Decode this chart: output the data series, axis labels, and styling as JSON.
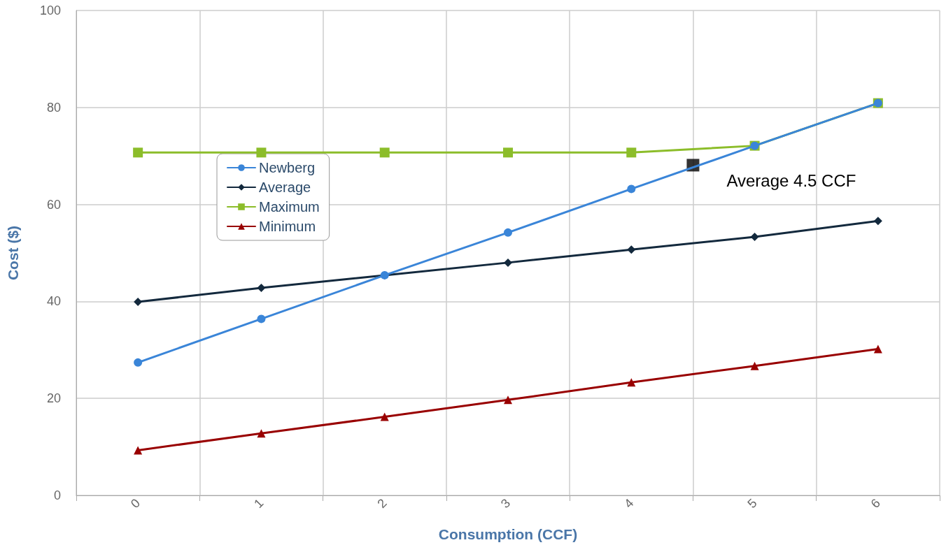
{
  "chart_data": {
    "type": "line",
    "xlabel": "Consumption (CCF)",
    "ylabel": "Cost ($)",
    "x": [
      0,
      1,
      2,
      3,
      4,
      5,
      6
    ],
    "series": [
      {
        "name": "Newberg",
        "color": "#3a85d8",
        "marker": "circle",
        "values": [
          27.4,
          36.4,
          45.4,
          54.2,
          63.2,
          72.1,
          80.9
        ]
      },
      {
        "name": "Average",
        "color": "#13293d",
        "marker": "diamond",
        "values": [
          39.9,
          42.8,
          45.4,
          48.0,
          50.7,
          53.3,
          56.6
        ]
      },
      {
        "name": "Maximum",
        "color": "#8cbd2a",
        "marker": "square",
        "values": [
          70.7,
          70.7,
          70.7,
          70.7,
          70.7,
          72.1,
          80.9
        ]
      },
      {
        "name": "Minimum",
        "color": "#990000",
        "marker": "triangle",
        "values": [
          9.3,
          12.8,
          16.2,
          19.7,
          23.3,
          26.7,
          30.2
        ]
      },
      {
        "type": "scatter",
        "color": "#000000",
        "marker": "square",
        "x": [
          4.5
        ],
        "values": [
          68.1
        ]
      }
    ],
    "xlim": [
      -0.5,
      6.5
    ],
    "xticks": [
      {
        "value": -0.5,
        "label": null
      },
      0,
      {
        "value": 0.5,
        "label": null
      },
      1,
      {
        "value": 1.5,
        "label": null
      },
      2,
      {
        "value": 2.5,
        "label": null
      },
      3,
      {
        "value": 3.5,
        "label": null
      },
      4,
      {
        "value": 4.5,
        "label": null
      },
      5,
      {
        "value": 5.5,
        "label": null
      },
      6,
      {
        "value": 6.5,
        "label": null
      }
    ],
    "ylim": [
      0,
      100
    ],
    "yticks": [
      0,
      20,
      40,
      60,
      80,
      100
    ],
    "grid": true,
    "legend": "top left",
    "line_style": "solid",
    "annotations": [
      {
        "text": "Average 4.5 CCF",
        "x": 4.5,
        "y": 68.1
      }
    ]
  }
}
